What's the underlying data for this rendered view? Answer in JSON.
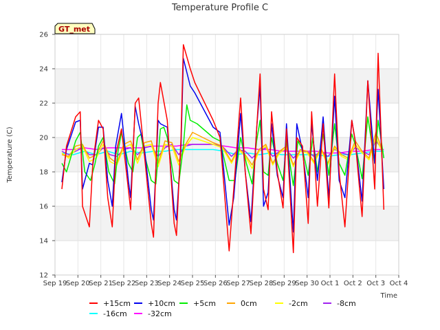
{
  "chart_data": {
    "type": "line",
    "title": "Temperature Profile C",
    "xlabel": "Time",
    "ylabel": "Temperature (C)",
    "badge": "GT_met",
    "ylim": [
      12,
      26
    ],
    "yticks": [
      12,
      14,
      16,
      18,
      20,
      22,
      24,
      26
    ],
    "xlim": [
      0,
      15
    ],
    "xticks": [
      {
        "x": 0,
        "label": "Sep 19"
      },
      {
        "x": 1,
        "label": "Sep 20"
      },
      {
        "x": 2,
        "label": "Sep 21"
      },
      {
        "x": 3,
        "label": "Sep 22"
      },
      {
        "x": 4,
        "label": "Sep 23"
      },
      {
        "x": 5,
        "label": "Sep 24"
      },
      {
        "x": 6,
        "label": "Sep 25"
      },
      {
        "x": 7,
        "label": "Sep 26"
      },
      {
        "x": 8,
        "label": "Sep 27"
      },
      {
        "x": 9,
        "label": "Sep 28"
      },
      {
        "x": 10,
        "label": "Sep 29"
      },
      {
        "x": 11,
        "label": "Sep 30"
      },
      {
        "x": 12,
        "label": "Oct 1"
      },
      {
        "x": 13,
        "label": "Oct 2"
      },
      {
        "x": 14,
        "label": "Oct 3"
      },
      {
        "x": 15,
        "label": "Oct 4"
      }
    ],
    "grid": true,
    "legend_position": "bottom",
    "series": [
      {
        "name": "+15cm",
        "color": "#ff0000",
        "x": [
          0.3,
          0.5,
          0.9,
          1.1,
          1.2,
          1.5,
          1.65,
          1.9,
          2.1,
          2.3,
          2.5,
          2.65,
          2.9,
          3.2,
          3.3,
          3.5,
          3.65,
          3.9,
          4.2,
          4.3,
          4.5,
          4.6,
          4.9,
          5.2,
          5.3,
          5.5,
          5.6,
          5.9,
          6.1,
          6.9,
          7.2,
          7.6,
          7.8,
          8.1,
          8.3,
          8.55,
          8.8,
          8.95,
          9.1,
          9.3,
          9.45,
          9.7,
          9.95,
          10.1,
          10.4,
          10.55,
          10.8,
          11.05,
          11.2,
          11.45,
          11.7,
          11.95,
          12.2,
          12.4,
          12.65,
          12.95,
          13.1,
          13.4,
          13.65,
          13.95,
          14.1,
          14.35
        ],
        "y": [
          17.0,
          19.5,
          21.2,
          21.5,
          16.0,
          14.8,
          18.5,
          21.0,
          20.5,
          16.5,
          14.8,
          19.0,
          20.5,
          17.0,
          15.8,
          22.0,
          22.3,
          19.0,
          15.0,
          14.2,
          22.0,
          23.2,
          21.0,
          15.0,
          14.3,
          20.0,
          25.4,
          24.0,
          23.2,
          21.0,
          20.0,
          13.4,
          17.0,
          22.3,
          18.0,
          14.4,
          20.5,
          23.7,
          17.0,
          15.8,
          21.5,
          18.0,
          15.9,
          20.5,
          13.3,
          20.0,
          19.5,
          15.0,
          21.5,
          16.0,
          20.8,
          15.9,
          23.7,
          18.0,
          14.8,
          21.0,
          19.8,
          15.4,
          23.3,
          17.0,
          24.9,
          15.8
        ]
      },
      {
        "name": "+10cm",
        "color": "#0000ee",
        "x": [
          0.3,
          0.5,
          0.9,
          1.1,
          1.2,
          1.5,
          1.65,
          1.9,
          2.1,
          2.3,
          2.5,
          2.65,
          2.9,
          3.2,
          3.3,
          3.5,
          3.65,
          3.9,
          4.2,
          4.3,
          4.5,
          4.6,
          4.9,
          5.2,
          5.3,
          5.5,
          5.6,
          5.9,
          6.1,
          6.9,
          7.2,
          7.6,
          7.8,
          8.1,
          8.3,
          8.55,
          8.8,
          8.95,
          9.1,
          9.3,
          9.45,
          9.7,
          9.95,
          10.1,
          10.4,
          10.55,
          10.8,
          11.05,
          11.2,
          11.45,
          11.7,
          11.95,
          12.2,
          12.4,
          12.65,
          12.95,
          13.1,
          13.4,
          13.65,
          13.95,
          14.1,
          14.35
        ],
        "y": [
          17.4,
          19.3,
          20.9,
          21.0,
          17.0,
          18.5,
          18.4,
          20.6,
          20.6,
          17.5,
          16.0,
          19.5,
          21.4,
          17.5,
          16.5,
          21.8,
          20.8,
          19.4,
          15.8,
          15.2,
          21.0,
          20.8,
          20.6,
          15.8,
          15.2,
          19.5,
          24.6,
          23.0,
          22.6,
          20.6,
          20.3,
          14.9,
          16.5,
          21.4,
          18.0,
          15.1,
          20.5,
          23.0,
          16.0,
          16.8,
          20.8,
          17.8,
          16.5,
          20.8,
          14.5,
          20.8,
          19.2,
          16.5,
          20.8,
          17.5,
          21.2,
          16.5,
          22.4,
          17.5,
          16.5,
          21.0,
          19.8,
          16.3,
          23.3,
          18.5,
          22.8,
          17.0
        ]
      },
      {
        "name": "+5cm",
        "color": "#00ee00",
        "x": [
          0.3,
          0.5,
          0.9,
          1.1,
          1.3,
          1.55,
          1.75,
          1.9,
          2.1,
          2.35,
          2.6,
          2.75,
          2.9,
          3.2,
          3.4,
          3.6,
          3.75,
          3.9,
          4.2,
          4.4,
          4.6,
          4.75,
          4.9,
          5.2,
          5.4,
          5.6,
          5.75,
          5.9,
          6.2,
          6.9,
          7.2,
          7.6,
          7.85,
          8.1,
          8.35,
          8.6,
          8.8,
          8.95,
          9.1,
          9.3,
          9.45,
          9.7,
          9.95,
          10.1,
          10.4,
          10.6,
          10.8,
          11.05,
          11.25,
          11.45,
          11.7,
          11.95,
          12.2,
          12.4,
          12.65,
          12.95,
          13.1,
          13.4,
          13.65,
          13.95,
          14.1,
          14.35
        ],
        "y": [
          18.5,
          18.0,
          19.8,
          20.3,
          18.0,
          17.5,
          18.5,
          19.5,
          20.0,
          18.0,
          17.3,
          19.2,
          20.3,
          18.5,
          18.0,
          20.0,
          20.2,
          19.0,
          17.5,
          17.3,
          20.5,
          20.6,
          20.0,
          17.5,
          17.3,
          19.5,
          21.9,
          21.0,
          20.8,
          20.0,
          19.8,
          17.5,
          17.5,
          20.0,
          18.5,
          17.3,
          19.8,
          21.0,
          18.0,
          17.8,
          20.0,
          18.5,
          17.5,
          19.8,
          17.2,
          19.8,
          19.3,
          17.8,
          20.0,
          18.0,
          20.2,
          17.8,
          20.8,
          18.5,
          17.8,
          20.2,
          19.6,
          17.6,
          21.2,
          18.5,
          21.0,
          18.8
        ]
      },
      {
        "name": "0cm",
        "color": "#ffa500",
        "x": [
          0.3,
          0.6,
          0.9,
          1.2,
          1.5,
          1.8,
          2.1,
          2.4,
          2.7,
          3.0,
          3.3,
          3.6,
          3.9,
          4.2,
          4.5,
          4.8,
          5.1,
          5.4,
          5.7,
          6.0,
          6.9,
          7.3,
          7.7,
          8.0,
          8.3,
          8.6,
          8.9,
          9.2,
          9.5,
          9.8,
          10.1,
          10.4,
          10.7,
          11.0,
          11.3,
          11.6,
          11.9,
          12.2,
          12.5,
          12.8,
          13.1,
          13.4,
          13.7,
          14.0,
          14.3
        ],
        "y": [
          19.0,
          18.9,
          19.5,
          19.6,
          18.8,
          19.0,
          19.8,
          18.8,
          18.5,
          19.6,
          19.8,
          18.7,
          19.7,
          19.8,
          18.5,
          19.8,
          19.7,
          18.6,
          19.6,
          20.3,
          19.7,
          19.5,
          18.6,
          19.4,
          19.0,
          18.4,
          19.3,
          19.6,
          18.5,
          19.2,
          19.5,
          18.4,
          19.3,
          19.2,
          18.6,
          19.4,
          18.5,
          19.5,
          19.0,
          18.8,
          19.8,
          19.2,
          18.8,
          20.3,
          19.2
        ]
      },
      {
        "name": "-2cm",
        "color": "#ffff00",
        "x": [
          0.3,
          0.6,
          0.9,
          1.2,
          1.5,
          1.8,
          2.1,
          2.4,
          2.7,
          3.0,
          3.3,
          3.6,
          3.9,
          4.2,
          4.5,
          4.8,
          5.1,
          5.4,
          5.7,
          6.0,
          6.9,
          7.3,
          7.7,
          8.0,
          8.3,
          8.6,
          8.9,
          9.2,
          9.5,
          9.8,
          10.1,
          10.4,
          10.7,
          11.0,
          11.3,
          11.6,
          11.9,
          12.2,
          12.5,
          12.8,
          13.1,
          13.4,
          13.7,
          14.0,
          14.3
        ],
        "y": [
          19.1,
          18.8,
          19.3,
          19.5,
          18.6,
          18.8,
          19.6,
          18.6,
          18.4,
          19.4,
          19.6,
          18.5,
          19.5,
          19.6,
          18.3,
          19.6,
          19.5,
          18.4,
          19.5,
          20.0,
          19.6,
          19.4,
          18.5,
          19.3,
          18.9,
          18.2,
          19.2,
          19.5,
          18.4,
          19.1,
          19.4,
          18.3,
          19.2,
          19.1,
          18.5,
          19.3,
          18.4,
          19.4,
          18.9,
          18.7,
          19.6,
          19.1,
          18.7,
          20.0,
          19.1
        ]
      },
      {
        "name": "-8cm",
        "color": "#a020f0",
        "x": [
          0.3,
          0.6,
          0.9,
          1.2,
          1.5,
          1.8,
          2.1,
          2.4,
          2.7,
          3.0,
          3.3,
          3.6,
          3.9,
          4.2,
          4.5,
          4.8,
          5.1,
          5.4,
          5.7,
          6.0,
          6.9,
          7.3,
          7.7,
          8.0,
          8.3,
          8.6,
          8.9,
          9.2,
          9.5,
          9.8,
          10.1,
          10.4,
          10.7,
          11.0,
          11.3,
          11.6,
          11.9,
          12.2,
          12.5,
          12.8,
          13.1,
          13.4,
          13.7,
          14.0,
          14.3
        ],
        "y": [
          19.2,
          19.0,
          19.2,
          19.4,
          19.0,
          19.0,
          19.4,
          19.0,
          18.9,
          19.3,
          19.4,
          19.0,
          19.4,
          19.5,
          18.9,
          19.4,
          19.6,
          19.0,
          19.5,
          19.6,
          19.6,
          19.5,
          18.9,
          19.3,
          19.2,
          18.8,
          19.2,
          19.4,
          18.9,
          19.2,
          19.3,
          18.8,
          19.2,
          19.2,
          18.9,
          19.2,
          18.9,
          19.3,
          19.1,
          19.0,
          19.4,
          19.2,
          19.0,
          19.8,
          19.3
        ]
      },
      {
        "name": "-16cm",
        "color": "#00ffff",
        "x": [
          0.3,
          0.8,
          1.3,
          1.8,
          2.3,
          2.8,
          3.3,
          3.8,
          4.3,
          4.8,
          5.3,
          5.8,
          6.3,
          6.9,
          7.4,
          7.9,
          8.4,
          8.9,
          9.4,
          9.9,
          10.4,
          10.9,
          11.4,
          11.9,
          12.4,
          12.9,
          13.4,
          13.9,
          14.35
        ],
        "y": [
          19.1,
          19.0,
          19.2,
          19.0,
          19.2,
          19.0,
          19.2,
          19.1,
          19.2,
          19.2,
          19.3,
          19.3,
          19.3,
          19.3,
          19.2,
          19.0,
          19.1,
          19.0,
          19.1,
          19.0,
          19.0,
          19.0,
          19.0,
          18.9,
          19.0,
          19.0,
          19.1,
          19.2,
          19.2
        ]
      },
      {
        "name": "-32cm",
        "color": "#ff00ff",
        "x": [
          0.3,
          0.8,
          1.3,
          1.8,
          2.3,
          2.8,
          3.3,
          3.8,
          4.3,
          4.8,
          5.3,
          5.8,
          6.3,
          6.9,
          7.4,
          7.9,
          8.4,
          8.9,
          9.4,
          9.9,
          10.4,
          10.9,
          11.4,
          11.9,
          12.4,
          12.9,
          13.4,
          13.9,
          14.35
        ],
        "y": [
          19.3,
          19.3,
          19.4,
          19.3,
          19.4,
          19.4,
          19.4,
          19.4,
          19.5,
          19.5,
          19.5,
          19.6,
          19.6,
          19.6,
          19.5,
          19.4,
          19.4,
          19.3,
          19.3,
          19.2,
          19.2,
          19.2,
          19.2,
          19.1,
          19.1,
          19.2,
          19.2,
          19.3,
          19.3
        ]
      }
    ]
  }
}
